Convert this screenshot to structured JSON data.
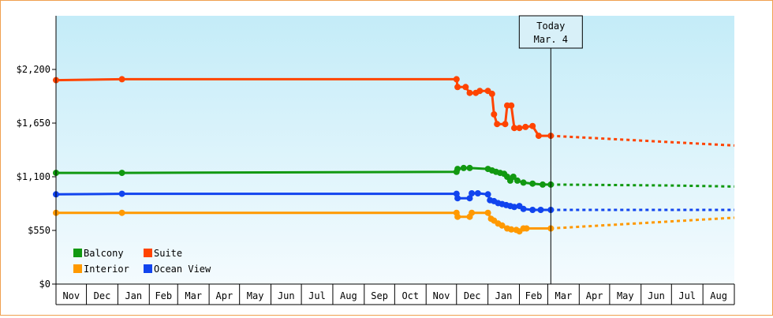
{
  "chart_data": {
    "type": "line",
    "title": "",
    "xlabel": "",
    "ylabel": "",
    "ylim": [
      0,
      2750
    ],
    "y_ticks": [
      {
        "value": 0,
        "label": "$0"
      },
      {
        "value": 550,
        "label": "$550"
      },
      {
        "value": 1100,
        "label": "$1,100"
      },
      {
        "value": 1650,
        "label": "$1,650"
      },
      {
        "value": 2200,
        "label": "$2,200"
      }
    ],
    "x_start": "2024-11-01",
    "x_end": "2026-09-01",
    "x_ticks": [
      {
        "date": "2024-11-01",
        "label": "Nov"
      },
      {
        "date": "2024-12-01",
        "label": "Dec"
      },
      {
        "date": "2025-01-01",
        "label": "Jan"
      },
      {
        "date": "2025-02-01",
        "label": "Feb"
      },
      {
        "date": "2025-03-01",
        "label": "Mar"
      },
      {
        "date": "2025-04-01",
        "label": "Apr"
      },
      {
        "date": "2025-05-01",
        "label": "May"
      },
      {
        "date": "2025-06-01",
        "label": "Jun"
      },
      {
        "date": "2025-07-01",
        "label": "Jul"
      },
      {
        "date": "2025-08-01",
        "label": "Aug"
      },
      {
        "date": "2025-09-01",
        "label": "Sep"
      },
      {
        "date": "2025-10-01",
        "label": "Oct"
      },
      {
        "date": "2025-11-01",
        "label": "Nov"
      },
      {
        "date": "2025-12-01",
        "label": "Dec"
      },
      {
        "date": "2026-01-01",
        "label": "Jan"
      },
      {
        "date": "2026-02-01",
        "label": "Feb"
      },
      {
        "date": "2026-03-01",
        "label": "Mar"
      },
      {
        "date": "2026-04-01",
        "label": "Apr"
      },
      {
        "date": "2026-05-01",
        "label": "May"
      },
      {
        "date": "2026-06-01",
        "label": "Jun"
      },
      {
        "date": "2026-07-01",
        "label": "Jul"
      },
      {
        "date": "2026-08-01",
        "label": "Aug"
      }
    ],
    "today": {
      "date": "2026-03-04",
      "line1": "Today",
      "line2": "Mar. 4"
    },
    "grid": false,
    "legend_position": "bottom-left",
    "background_gradient": [
      "#c4ecf8",
      "#f4fbfe"
    ],
    "series": [
      {
        "name": "Balcony",
        "color": "#119911",
        "points": [
          [
            "2024-11-01",
            1140
          ],
          [
            "2025-01-05",
            1140
          ],
          [
            "2025-12-01",
            1150
          ],
          [
            "2025-12-02",
            1180
          ],
          [
            "2025-12-08",
            1190
          ],
          [
            "2025-12-14",
            1190
          ],
          [
            "2026-01-01",
            1180
          ],
          [
            "2026-01-05",
            1165
          ],
          [
            "2026-01-09",
            1150
          ],
          [
            "2026-01-13",
            1140
          ],
          [
            "2026-01-17",
            1130
          ],
          [
            "2026-01-20",
            1100
          ],
          [
            "2026-01-23",
            1060
          ],
          [
            "2026-01-26",
            1100
          ],
          [
            "2026-01-30",
            1060
          ],
          [
            "2026-02-05",
            1040
          ],
          [
            "2026-02-14",
            1030
          ],
          [
            "2026-02-24",
            1020
          ],
          [
            "2026-03-04",
            1020
          ]
        ],
        "projection": [
          [
            "2026-03-04",
            1020
          ],
          [
            "2026-07-01",
            1010
          ],
          [
            "2026-09-01",
            1000
          ]
        ]
      },
      {
        "name": "Suite",
        "color": "#ff4400",
        "points": [
          [
            "2024-11-01",
            2090
          ],
          [
            "2025-01-05",
            2100
          ],
          [
            "2025-12-01",
            2100
          ],
          [
            "2025-12-02",
            2020
          ],
          [
            "2025-12-10",
            2020
          ],
          [
            "2025-12-14",
            1960
          ],
          [
            "2025-12-20",
            1960
          ],
          [
            "2025-12-24",
            1980
          ],
          [
            "2026-01-01",
            1980
          ],
          [
            "2026-01-05",
            1950
          ],
          [
            "2026-01-07",
            1740
          ],
          [
            "2026-01-10",
            1640
          ],
          [
            "2026-01-18",
            1640
          ],
          [
            "2026-01-20",
            1830
          ],
          [
            "2026-01-24",
            1830
          ],
          [
            "2026-01-27",
            1600
          ],
          [
            "2026-02-01",
            1600
          ],
          [
            "2026-02-07",
            1610
          ],
          [
            "2026-02-14",
            1620
          ],
          [
            "2026-02-20",
            1520
          ],
          [
            "2026-03-04",
            1520
          ]
        ],
        "projection": [
          [
            "2026-03-04",
            1520
          ],
          [
            "2026-09-01",
            1420
          ]
        ]
      },
      {
        "name": "Interior",
        "color": "#ff9900",
        "points": [
          [
            "2024-11-01",
            730
          ],
          [
            "2025-01-05",
            730
          ],
          [
            "2025-12-01",
            730
          ],
          [
            "2025-12-02",
            690
          ],
          [
            "2025-12-14",
            690
          ],
          [
            "2025-12-16",
            730
          ],
          [
            "2026-01-01",
            730
          ],
          [
            "2026-01-04",
            670
          ],
          [
            "2026-01-07",
            650
          ],
          [
            "2026-01-11",
            620
          ],
          [
            "2026-01-15",
            600
          ],
          [
            "2026-01-20",
            570
          ],
          [
            "2026-01-24",
            560
          ],
          [
            "2026-01-29",
            555
          ],
          [
            "2026-02-01",
            540
          ],
          [
            "2026-02-05",
            570
          ],
          [
            "2026-02-08",
            570
          ],
          [
            "2026-03-04",
            570
          ]
        ],
        "projection": [
          [
            "2026-03-04",
            570
          ],
          [
            "2026-09-01",
            680
          ]
        ]
      },
      {
        "name": "Ocean View",
        "color": "#1144ee",
        "points": [
          [
            "2024-11-01",
            920
          ],
          [
            "2025-01-05",
            925
          ],
          [
            "2025-12-01",
            925
          ],
          [
            "2025-12-02",
            880
          ],
          [
            "2025-12-14",
            880
          ],
          [
            "2025-12-16",
            930
          ],
          [
            "2025-12-22",
            930
          ],
          [
            "2026-01-01",
            920
          ],
          [
            "2026-01-03",
            860
          ],
          [
            "2026-01-07",
            850
          ],
          [
            "2026-01-11",
            830
          ],
          [
            "2026-01-15",
            820
          ],
          [
            "2026-01-19",
            810
          ],
          [
            "2026-01-23",
            800
          ],
          [
            "2026-01-27",
            790
          ],
          [
            "2026-02-01",
            800
          ],
          [
            "2026-02-05",
            770
          ],
          [
            "2026-02-14",
            760
          ],
          [
            "2026-02-22",
            760
          ],
          [
            "2026-03-04",
            760
          ]
        ],
        "projection": [
          [
            "2026-03-04",
            760
          ],
          [
            "2026-09-01",
            760
          ]
        ]
      }
    ],
    "legend_order": [
      "Balcony",
      "Suite",
      "Interior",
      "Ocean View"
    ]
  }
}
